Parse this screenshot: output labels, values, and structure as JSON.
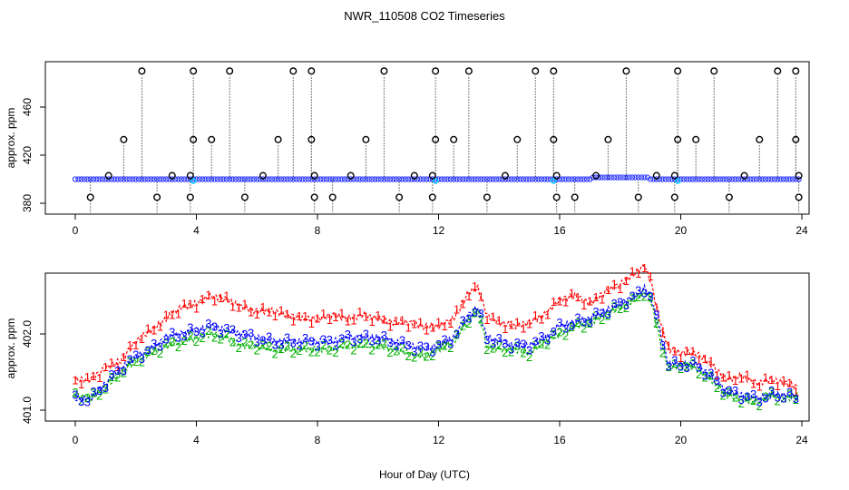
{
  "title": "NWR_110508  CO2 Timeseries",
  "xlabel": "Hour of Day (UTC)",
  "colors": {
    "symbol": "#000000",
    "line": "#1f2cff",
    "cyan": "#00ccff",
    "s1": "#ff0000",
    "s2": "#00b000",
    "s3": "#0000ff"
  },
  "chart_data": [
    {
      "type": "scatter",
      "title": "NWR_110508  CO2 Timeseries",
      "xlabel": "",
      "ylabel": "approx. ppm",
      "xlim": [
        0,
        24
      ],
      "ylim": [
        375,
        492
      ],
      "xticks": [
        0,
        4,
        8,
        12,
        16,
        20,
        24
      ],
      "yticks": [
        380,
        420,
        460
      ],
      "baseline": 400,
      "high_flags": [
        [
          2.2,
          490
        ],
        [
          3.9,
          490
        ],
        [
          5.1,
          490
        ],
        [
          7.2,
          490
        ],
        [
          7.8,
          490
        ],
        [
          10.2,
          490
        ],
        [
          11.9,
          490
        ],
        [
          13.0,
          490
        ],
        [
          15.2,
          490
        ],
        [
          15.8,
          490
        ],
        [
          18.2,
          490
        ],
        [
          19.9,
          490
        ],
        [
          21.1,
          490
        ],
        [
          23.2,
          490
        ],
        [
          23.8,
          490
        ],
        [
          1.6,
          433
        ],
        [
          3.9,
          433
        ],
        [
          4.5,
          433
        ],
        [
          6.7,
          433
        ],
        [
          7.8,
          433
        ],
        [
          9.6,
          433
        ],
        [
          11.9,
          433
        ],
        [
          12.5,
          433
        ],
        [
          14.6,
          433
        ],
        [
          15.8,
          433
        ],
        [
          17.6,
          433
        ],
        [
          19.9,
          433
        ],
        [
          20.5,
          433
        ],
        [
          22.6,
          433
        ],
        [
          23.8,
          433
        ],
        [
          1.1,
          403
        ],
        [
          3.2,
          403
        ],
        [
          3.8,
          403
        ],
        [
          6.2,
          403
        ],
        [
          7.9,
          403
        ],
        [
          9.1,
          403
        ],
        [
          11.2,
          403
        ],
        [
          11.8,
          403
        ],
        [
          14.2,
          403
        ],
        [
          15.9,
          403
        ],
        [
          17.2,
          403
        ],
        [
          19.2,
          403
        ],
        [
          19.8,
          403
        ],
        [
          22.1,
          403
        ],
        [
          23.9,
          403
        ]
      ],
      "low_flags": [
        [
          0.5,
          385
        ],
        [
          2.7,
          385
        ],
        [
          3.8,
          385
        ],
        [
          5.6,
          385
        ],
        [
          7.9,
          385
        ],
        [
          8.5,
          385
        ],
        [
          10.7,
          385
        ],
        [
          11.8,
          385
        ],
        [
          13.6,
          385
        ],
        [
          15.9,
          385
        ],
        [
          16.5,
          385
        ],
        [
          18.6,
          385
        ],
        [
          19.8,
          385
        ],
        [
          21.6,
          385
        ],
        [
          23.9,
          385
        ]
      ]
    },
    {
      "type": "line",
      "title": "",
      "xlabel": "Hour of Day (UTC)",
      "ylabel": "approx. ppm",
      "xlim": [
        0,
        24
      ],
      "ylim": [
        400.9,
        402.9
      ],
      "xticks": [
        0,
        4,
        8,
        12,
        16,
        20,
        24
      ],
      "yticks": [
        401.0,
        402.0
      ],
      "ytick_labels": [
        "401.0",
        "402.0"
      ],
      "x": [
        0.0,
        0.5,
        1.0,
        1.5,
        2.0,
        2.5,
        3.0,
        3.5,
        4.0,
        4.5,
        5.0,
        5.5,
        6.0,
        6.5,
        7.0,
        7.5,
        8.0,
        8.5,
        9.0,
        9.5,
        10.0,
        10.5,
        11.0,
        11.5,
        12.0,
        12.5,
        13.0,
        13.3,
        13.6,
        14.0,
        14.5,
        15.0,
        15.5,
        16.0,
        16.5,
        17.0,
        17.5,
        18.0,
        18.5,
        18.8,
        19.0,
        19.3,
        19.6,
        20.0,
        20.5,
        21.0,
        21.5,
        22.0,
        22.5,
        23.0,
        23.5,
        23.9
      ],
      "series": [
        {
          "name": "1",
          "values": [
            401.4,
            401.4,
            401.55,
            401.65,
            401.9,
            402.05,
            402.2,
            402.35,
            402.4,
            402.5,
            402.45,
            402.35,
            402.3,
            402.3,
            402.25,
            402.2,
            402.2,
            402.25,
            402.2,
            402.25,
            402.2,
            402.15,
            402.15,
            402.1,
            402.1,
            402.2,
            402.55,
            402.6,
            402.25,
            402.15,
            402.1,
            402.15,
            402.25,
            402.45,
            402.5,
            402.4,
            402.55,
            402.65,
            402.8,
            402.9,
            402.7,
            402.2,
            401.8,
            401.75,
            401.75,
            401.6,
            401.4,
            401.45,
            401.35,
            401.4,
            401.35,
            401.3
          ]
        },
        {
          "name": "2",
          "values": [
            401.2,
            401.15,
            401.3,
            401.5,
            401.65,
            401.75,
            401.85,
            401.9,
            401.95,
            402.0,
            401.95,
            401.85,
            401.85,
            401.8,
            401.8,
            401.8,
            401.8,
            401.8,
            401.85,
            401.85,
            401.85,
            401.8,
            401.75,
            401.7,
            401.8,
            401.9,
            402.2,
            402.3,
            401.85,
            401.8,
            401.8,
            401.75,
            401.9,
            402.0,
            402.1,
            402.15,
            402.25,
            402.35,
            402.45,
            402.55,
            402.45,
            401.95,
            401.55,
            401.6,
            401.55,
            401.4,
            401.2,
            401.15,
            401.1,
            401.2,
            401.15,
            401.2
          ]
        },
        {
          "name": "3",
          "values": [
            401.15,
            401.15,
            401.35,
            401.55,
            401.7,
            401.8,
            401.95,
            402.0,
            402.05,
            402.1,
            402.05,
            402.0,
            401.95,
            401.9,
            401.9,
            401.9,
            401.9,
            401.9,
            401.95,
            401.95,
            401.95,
            401.9,
            401.85,
            401.8,
            401.85,
            401.95,
            402.25,
            402.35,
            401.95,
            401.9,
            401.85,
            401.85,
            401.95,
            402.1,
            402.15,
            402.2,
            402.3,
            402.4,
            402.5,
            402.6,
            402.5,
            402.05,
            401.6,
            401.6,
            401.6,
            401.45,
            401.25,
            401.2,
            401.15,
            401.2,
            401.2,
            401.15
          ]
        }
      ]
    }
  ]
}
